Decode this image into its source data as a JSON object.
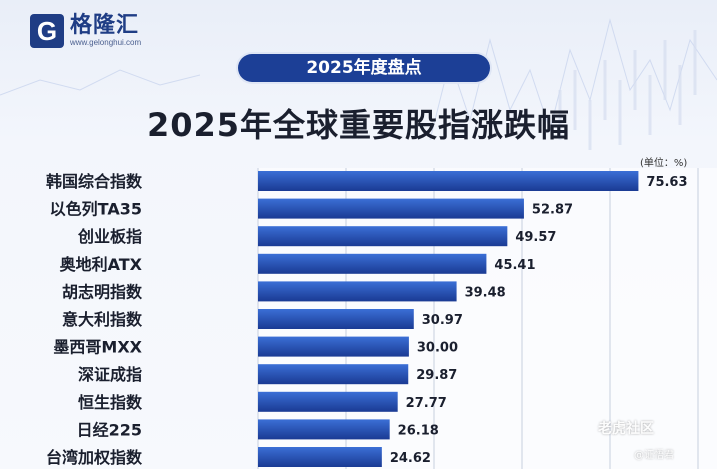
{
  "brand": {
    "logo_letter": "G",
    "name": "格隆汇",
    "url": "www.gelonghui.com"
  },
  "header": {
    "badge": "2025年度盘点",
    "title": "2025年全球重要股指涨跌幅"
  },
  "unit_label": "(单位：%)",
  "watermark": {
    "line1": "老虎社区",
    "line2": "@证悟君"
  },
  "colors": {
    "bar_top": "#3b6fd6",
    "bar_bottom": "#1a3a93",
    "brand": "#1f3d85"
  },
  "chart_data": {
    "type": "bar",
    "orientation": "horizontal",
    "title": "2025年全球重要股指涨跌幅",
    "unit": "(单位：%)",
    "categories": [
      "韩国综合指数",
      "以色列TA35",
      "创业板指",
      "奥地利ATX",
      "胡志明指数",
      "意大利指数",
      "墨西哥MXX",
      "深证成指",
      "恒生指数",
      "日经225",
      "台湾加权指数"
    ],
    "values": [
      75.63,
      52.87,
      49.57,
      45.41,
      39.48,
      30.97,
      30.0,
      29.87,
      27.77,
      26.18,
      24.62
    ],
    "value_labels": [
      "75.63",
      "52.87",
      "49.57",
      "45.41",
      "39.48",
      "30.97",
      "30.00",
      "29.87",
      "27.77",
      "26.18",
      "24.62"
    ],
    "grid": true
  }
}
